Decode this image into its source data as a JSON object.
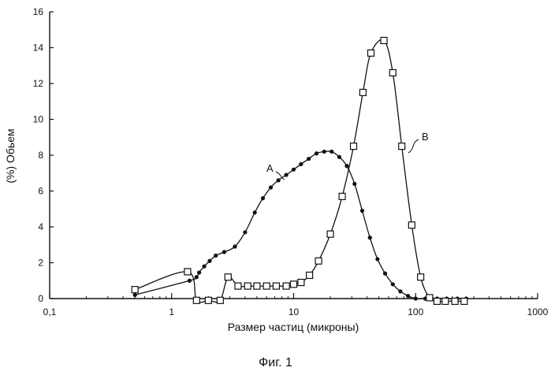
{
  "chart_data": {
    "type": "line",
    "xlabel": "Размер частиц (микроны)",
    "ylabel": "(%) Обьем",
    "x_scale": "log",
    "xlim": [
      0.1,
      1000
    ],
    "ylim": [
      0,
      16
    ],
    "x_ticks": [
      {
        "value": 0.1,
        "label": "0,1"
      },
      {
        "value": 1,
        "label": "1"
      },
      {
        "value": 10,
        "label": "10"
      },
      {
        "value": 100,
        "label": "100"
      },
      {
        "value": 1000,
        "label": "1000"
      }
    ],
    "y_ticks": [
      {
        "value": 0,
        "label": "0"
      },
      {
        "value": 2,
        "label": "2"
      },
      {
        "value": 4,
        "label": "4"
      },
      {
        "value": 6,
        "label": "6"
      },
      {
        "value": 8,
        "label": "8"
      },
      {
        "value": 10,
        "label": "10"
      },
      {
        "value": 12,
        "label": "12"
      },
      {
        "value": 14,
        "label": "14"
      },
      {
        "value": 16,
        "label": "16"
      }
    ],
    "grid": false,
    "legend": "none",
    "series": [
      {
        "name": "A",
        "marker": "dot",
        "x": [
          0.5,
          1.4,
          1.6,
          1.68,
          1.85,
          2.05,
          2.3,
          2.7,
          3.3,
          4.0,
          4.8,
          5.6,
          6.5,
          7.5,
          8.7,
          10.0,
          11.5,
          13.3,
          15.4,
          17.8,
          20.5,
          23.7,
          27.3,
          31.6,
          36.5,
          42.2,
          48.7,
          56.2,
          65.0,
          75.0,
          86.6,
          100,
          120,
          150,
          180,
          220,
          260
        ],
        "y": [
          0.2,
          1.0,
          1.2,
          1.45,
          1.8,
          2.1,
          2.4,
          2.6,
          2.9,
          3.7,
          4.8,
          5.6,
          6.2,
          6.6,
          6.9,
          7.2,
          7.5,
          7.8,
          8.1,
          8.2,
          8.2,
          7.9,
          7.4,
          6.4,
          4.9,
          3.4,
          2.2,
          1.4,
          0.8,
          0.4,
          0.15,
          0.0,
          0.0,
          0.0,
          0.0,
          0.0,
          0.0
        ]
      },
      {
        "name": "B",
        "marker": "square",
        "x": [
          0.5,
          1.35,
          1.6,
          2.0,
          2.5,
          2.9,
          3.5,
          4.2,
          5.0,
          6.0,
          7.2,
          8.7,
          10.0,
          11.5,
          13.5,
          16.0,
          20.0,
          25.0,
          31.0,
          37.0,
          43.0,
          55.0,
          65.0,
          77.0,
          93.0,
          110,
          130,
          150,
          175,
          210,
          250
        ],
        "y": [
          0.5,
          1.5,
          -0.1,
          -0.1,
          -0.1,
          1.2,
          0.7,
          0.7,
          0.7,
          0.7,
          0.7,
          0.7,
          0.8,
          0.9,
          1.3,
          2.1,
          3.6,
          5.7,
          8.5,
          11.5,
          13.7,
          14.4,
          12.6,
          8.5,
          4.1,
          1.2,
          0.05,
          -0.15,
          -0.15,
          -0.15,
          -0.15
        ]
      }
    ]
  },
  "caption": "Фиг. 1"
}
